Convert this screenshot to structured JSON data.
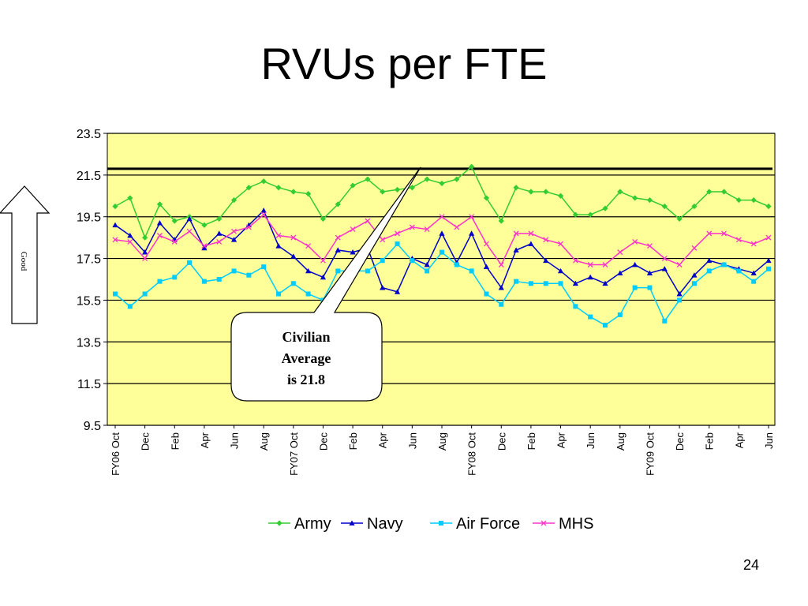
{
  "slide": {
    "title": "RVUs per FTE",
    "page_number": "24"
  },
  "callout": {
    "lines": [
      "Civilian",
      "Average",
      "is 21.8"
    ]
  },
  "good_arrow": {
    "label": "Good"
  },
  "colors": {
    "plot_bg": "#ffff99",
    "army": "#33cc33",
    "navy": "#0000cc",
    "air_force": "#00ccff",
    "mhs": "#ff33cc",
    "reference": "#000000"
  },
  "chart_data": {
    "type": "line",
    "title": "",
    "xlabel": "",
    "ylabel": "",
    "ylim": [
      9.5,
      23.5
    ],
    "yticks": [
      23.5,
      21.5,
      19.5,
      17.5,
      15.5,
      13.5,
      11.5,
      9.5
    ],
    "ytick_labels": [
      "23.5",
      "21.5",
      "19.5",
      "17.5",
      "15.5",
      "13.5",
      "11.5",
      "9.5"
    ],
    "grid": "horizontal",
    "legend_position": "bottom",
    "reference_line": {
      "value": 21.8
    },
    "x_tick_labels": [
      "FY06 Oct",
      "Dec",
      "Feb",
      "Apr",
      "Jun",
      "Aug",
      "FY07 Oct",
      "Dec",
      "Feb",
      "Apr",
      "Jun",
      "Aug",
      "FY08 Oct",
      "Dec",
      "Feb",
      "Apr",
      "Jun",
      "Aug",
      "FY09 Oct",
      "Dec",
      "Feb",
      "Apr",
      "Jun"
    ],
    "n_points": 45,
    "series": [
      {
        "name": "Army",
        "color": "#33cc33",
        "marker": "diamond",
        "values": [
          20.0,
          20.4,
          18.5,
          20.1,
          19.3,
          19.5,
          19.1,
          19.4,
          20.3,
          20.9,
          21.2,
          20.9,
          20.7,
          20.6,
          19.4,
          20.1,
          21.0,
          21.3,
          20.7,
          20.8,
          20.9,
          21.3,
          21.1,
          21.3,
          21.9,
          20.4,
          19.3,
          20.9,
          20.7,
          20.7,
          20.5,
          19.6,
          19.6,
          19.9,
          20.7,
          20.4,
          20.3,
          20.0,
          19.4,
          20.0,
          20.7,
          20.7,
          20.3,
          20.3,
          20.0
        ]
      },
      {
        "name": "Navy",
        "color": "#0000cc",
        "marker": "triangle",
        "values": [
          19.1,
          18.6,
          17.8,
          19.2,
          18.4,
          19.4,
          18.0,
          18.7,
          18.4,
          19.1,
          19.8,
          18.1,
          17.6,
          16.9,
          16.6,
          17.9,
          17.8,
          18.0,
          16.1,
          15.9,
          17.5,
          17.2,
          18.7,
          17.3,
          18.7,
          17.1,
          16.1,
          17.9,
          18.2,
          17.4,
          16.9,
          16.3,
          16.6,
          16.3,
          16.8,
          17.2,
          16.8,
          17.0,
          15.8,
          16.7,
          17.4,
          17.2,
          17.0,
          16.8,
          17.4
        ]
      },
      {
        "name": "Air Force",
        "color": "#00ccff",
        "marker": "square",
        "values": [
          15.8,
          15.2,
          15.8,
          16.4,
          16.6,
          17.3,
          16.4,
          16.5,
          16.9,
          16.7,
          17.1,
          15.8,
          16.3,
          15.8,
          15.5,
          16.9,
          16.9,
          16.9,
          17.4,
          18.2,
          17.4,
          16.9,
          17.8,
          17.2,
          16.9,
          15.8,
          15.3,
          16.4,
          16.3,
          16.3,
          16.3,
          15.2,
          14.7,
          14.3,
          14.8,
          16.1,
          16.1,
          14.5,
          15.5,
          16.3,
          16.9,
          17.2,
          16.9,
          16.4,
          17.0
        ]
      },
      {
        "name": "MHS",
        "color": "#ff33cc",
        "marker": "x",
        "values": [
          18.4,
          18.3,
          17.5,
          18.6,
          18.3,
          18.8,
          18.1,
          18.3,
          18.8,
          19.0,
          19.6,
          18.6,
          18.5,
          18.1,
          17.4,
          18.5,
          18.9,
          19.3,
          18.4,
          18.7,
          19.0,
          18.9,
          19.5,
          19.0,
          19.5,
          18.2,
          17.2,
          18.7,
          18.7,
          18.4,
          18.2,
          17.4,
          17.2,
          17.2,
          17.8,
          18.3,
          18.1,
          17.5,
          17.2,
          18.0,
          18.7,
          18.7,
          18.4,
          18.2,
          18.5
        ]
      }
    ]
  }
}
